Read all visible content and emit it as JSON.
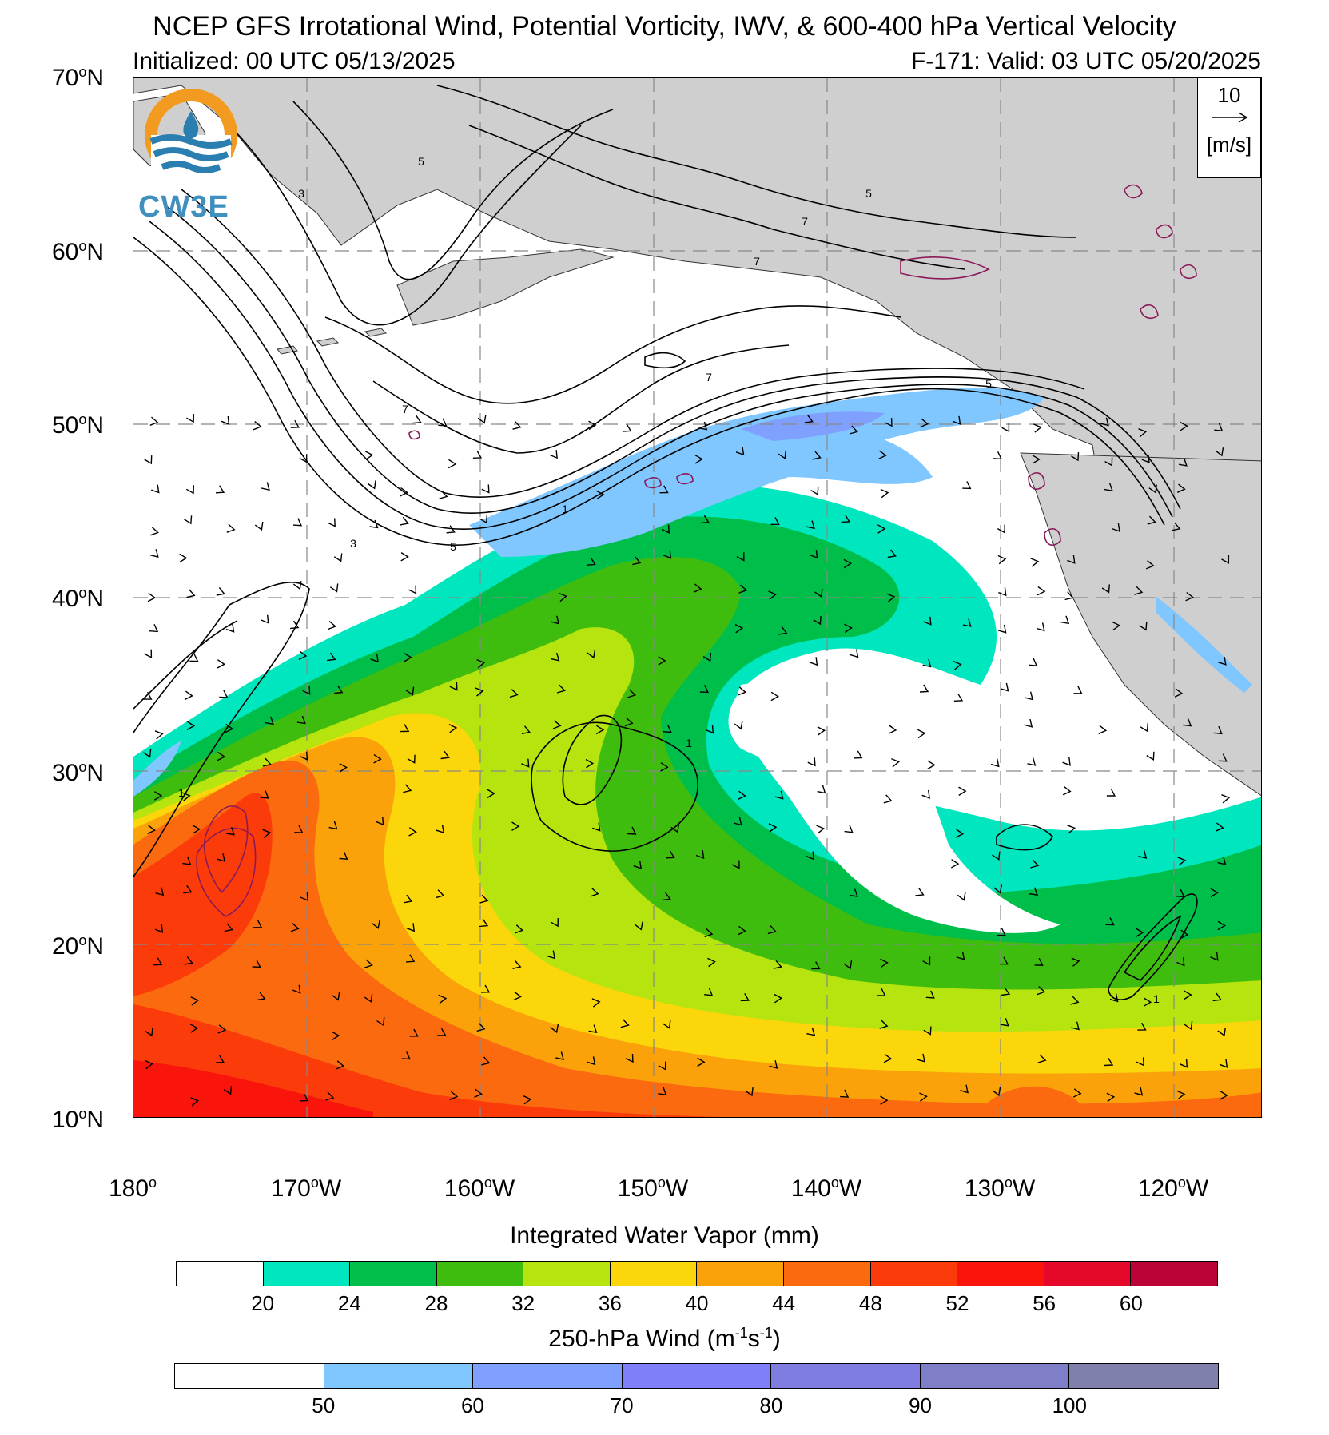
{
  "header": {
    "title": "NCEP GFS Irrotational Wind, Potential Vorticity, IWV, & 600-400 hPa Vertical Velocity",
    "initialized": "Initialized: 00 UTC 05/13/2025",
    "valid": "F-171: Valid: 03 UTC 05/20/2025"
  },
  "logo": {
    "text": "CW3E",
    "colors": {
      "ring": "#f39a21",
      "wave": "#2b7fb0",
      "text": "#3f8fbf"
    }
  },
  "map": {
    "lat_labels": [
      {
        "deg": "70",
        "suffix": "N"
      },
      {
        "deg": "60",
        "suffix": "N"
      },
      {
        "deg": "50",
        "suffix": "N"
      },
      {
        "deg": "40",
        "suffix": "N"
      },
      {
        "deg": "30",
        "suffix": "N"
      },
      {
        "deg": "20",
        "suffix": "N"
      },
      {
        "deg": "10",
        "suffix": "N"
      }
    ],
    "lon_labels": [
      {
        "deg": "180",
        "suffix": ""
      },
      {
        "deg": "170",
        "suffix": "W"
      },
      {
        "deg": "160",
        "suffix": "W"
      },
      {
        "deg": "150",
        "suffix": "W"
      },
      {
        "deg": "140",
        "suffix": "W"
      },
      {
        "deg": "130",
        "suffix": "W"
      },
      {
        "deg": "120",
        "suffix": "W"
      }
    ],
    "land_color": "#cfcfcf",
    "contour_labels": [
      "3",
      "5",
      "7",
      "7",
      "7",
      "5",
      "3",
      "5",
      "1",
      "1",
      "1",
      "7",
      "5",
      "1"
    ],
    "vector_legend": {
      "value": "10",
      "unit": "[m/s]"
    }
  },
  "iwv_colorbar": {
    "title": "Integrated Water Vapor (mm)",
    "colors": [
      "#ffffff",
      "#00e6be",
      "#00be4a",
      "#3fbd0e",
      "#b6e40e",
      "#fad60a",
      "#fba20a",
      "#fb6a0e",
      "#fb3b09",
      "#fa150c",
      "#e5082a",
      "#bb0338"
    ],
    "labels": [
      "20",
      "24",
      "28",
      "32",
      "36",
      "40",
      "44",
      "48",
      "52",
      "56",
      "60"
    ]
  },
  "wind_colorbar": {
    "title_main": "250-hPa Wind (m",
    "title_sup1": "-1",
    "title_mid": "s",
    "title_sup2": "-1",
    "title_end": ")",
    "colors": [
      "#ffffff",
      "#80c7ff",
      "#7fa0ff",
      "#7f7ffa",
      "#7f7ee0",
      "#7f7fc8",
      "#8080ad"
    ],
    "labels": [
      "50",
      "60",
      "70",
      "80",
      "90",
      "100"
    ]
  }
}
